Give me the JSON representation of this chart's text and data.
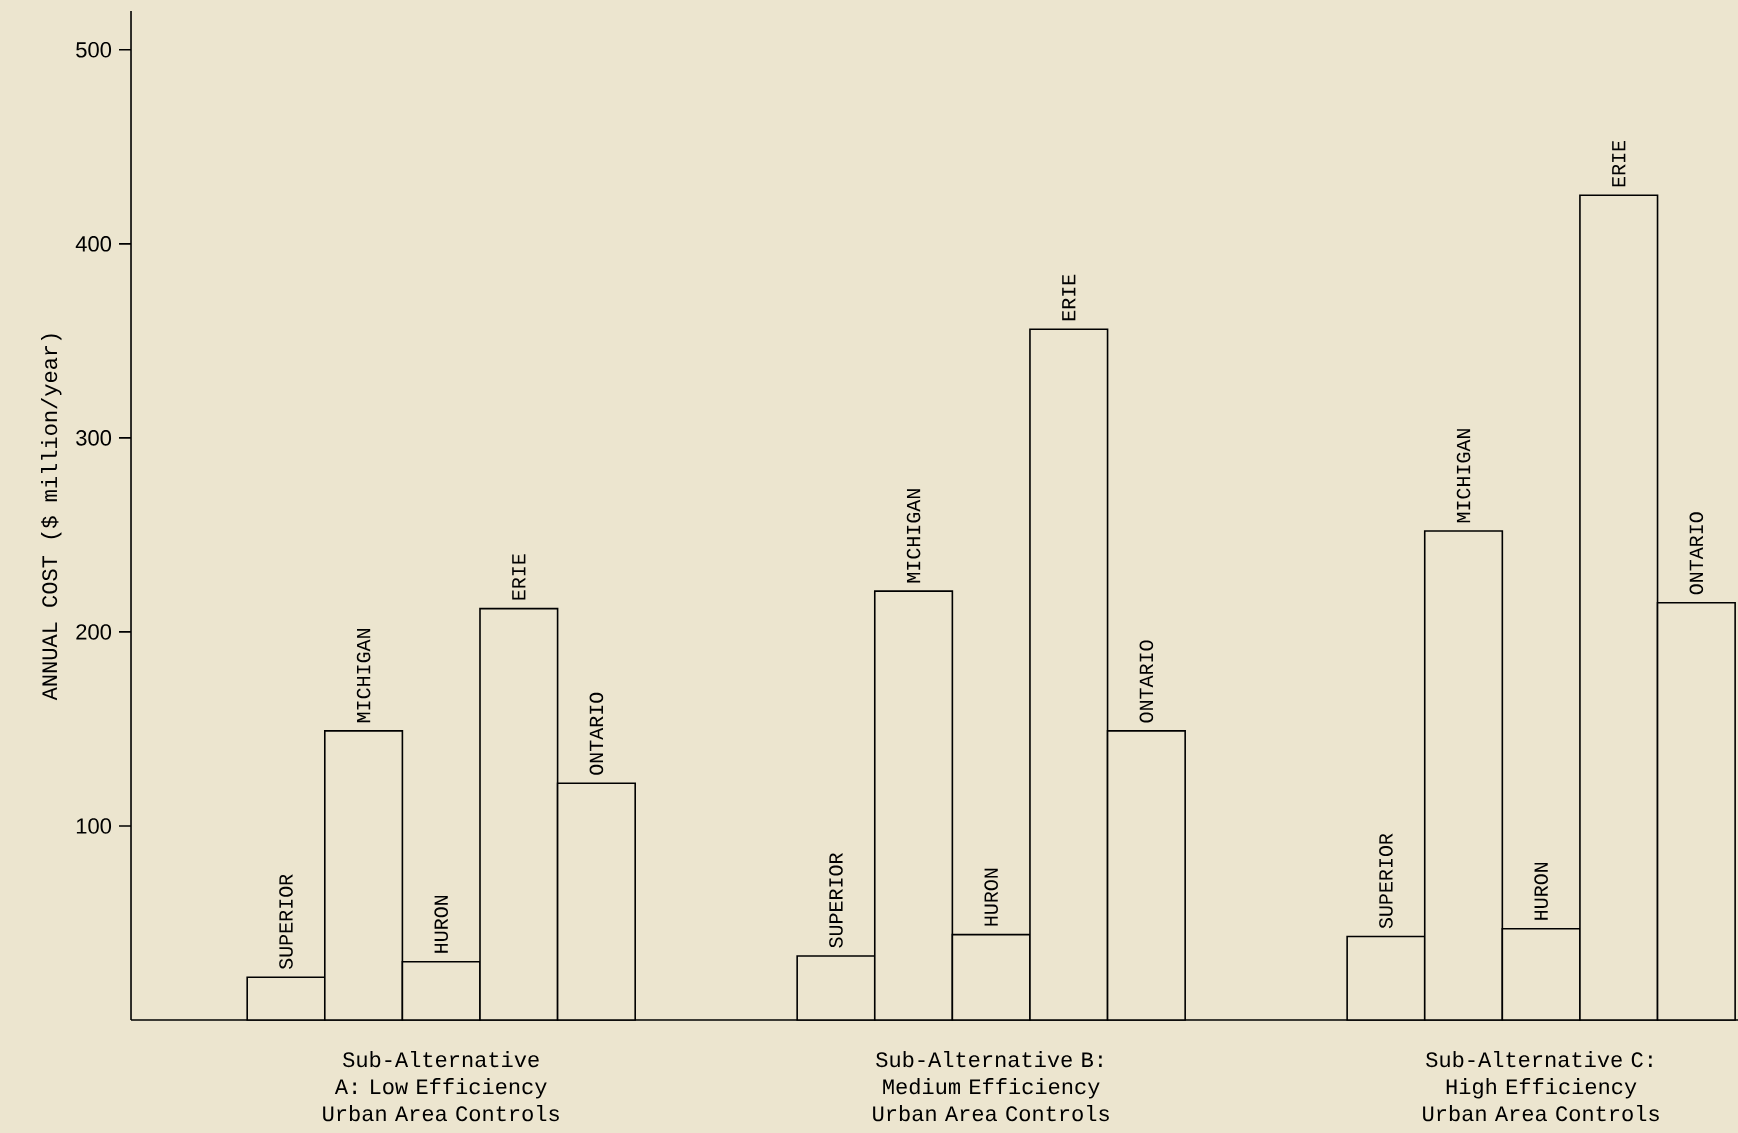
{
  "chart_data": {
    "type": "bar",
    "ylabel": "ANNUAL COST ($ million/year)",
    "categories": [
      "Sub-Alternative A: Low Efficiency Urban Area Controls",
      "Sub-Alternative B: Medium Efficiency Urban Area Controls",
      "Sub-Alternative C: High Efficiency Urban Area Controls"
    ],
    "series": [
      {
        "name": "SUPERIOR",
        "color": "#ece5cf",
        "values": [
          22,
          33,
          43
        ]
      },
      {
        "name": "MICHIGAN",
        "color": "#ece5cf",
        "values": [
          149,
          221,
          252
        ]
      },
      {
        "name": "HURON",
        "color": "#ece5cf",
        "values": [
          30,
          44,
          47
        ]
      },
      {
        "name": "ERIE",
        "color": "#ece5cf",
        "values": [
          212,
          356,
          425
        ]
      },
      {
        "name": "ONTARIO",
        "color": "#ece5cf",
        "values": [
          122,
          149,
          215
        ]
      }
    ],
    "ylim": [
      0,
      520
    ],
    "yticks": [
      100,
      200,
      300,
      400,
      500
    ],
    "grid": false
  }
}
